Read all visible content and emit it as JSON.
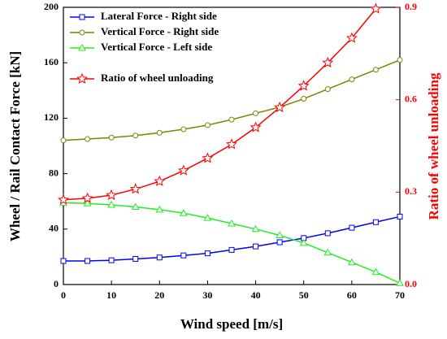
{
  "chart_data": {
    "type": "line",
    "xlabel": "Wind speed [m/s]",
    "ylabel": "Wheel / Rail Contact Force [kN]",
    "y2label": "Ratio of wheel unloading",
    "x": [
      0,
      5,
      10,
      15,
      20,
      25,
      30,
      35,
      40,
      45,
      50,
      55,
      60,
      65,
      70
    ],
    "series": [
      {
        "name": "Lateral Force - Right side",
        "color": "#0000ff",
        "marker": "square",
        "values": [
          17,
          17,
          17.5,
          18.5,
          19.5,
          21,
          22.5,
          25,
          27.5,
          30.5,
          33.5,
          37,
          41,
          45,
          49
        ]
      },
      {
        "name": "Vertical Force - Right side",
        "color": "#808000",
        "marker": "circle",
        "values": [
          104,
          105,
          106,
          107.5,
          109.5,
          112,
          115,
          119,
          123.5,
          128,
          134,
          141,
          148,
          155,
          162
        ]
      },
      {
        "name": "Vertical Force - Left side",
        "color": "#22ee22",
        "marker": "triangle",
        "values": [
          59,
          58.5,
          57.5,
          56,
          54,
          51.5,
          48,
          44,
          40,
          35.5,
          30,
          23,
          16,
          9,
          1
        ]
      },
      {
        "name": "Ratio of wheel unloading",
        "color": "#ff0000",
        "marker": "star",
        "axis": "y2",
        "values": [
          0.275,
          0.28,
          0.29,
          0.31,
          0.335,
          0.37,
          0.41,
          0.455,
          0.51,
          0.575,
          0.645,
          0.72,
          0.8,
          0.895,
          null
        ]
      }
    ],
    "xlim": [
      0,
      70
    ],
    "xticks": [
      0,
      10,
      20,
      30,
      40,
      50,
      60,
      70
    ],
    "ylim": [
      0,
      200
    ],
    "yticks": [
      0,
      40,
      80,
      120,
      160,
      200
    ],
    "y2lim": [
      0,
      0.9
    ],
    "y2ticks": [
      {
        "value": 0,
        "label": "0.0"
      },
      0.3,
      0.6,
      0.9
    ],
    "y2color": "#ff0000",
    "legend": "upper left"
  }
}
